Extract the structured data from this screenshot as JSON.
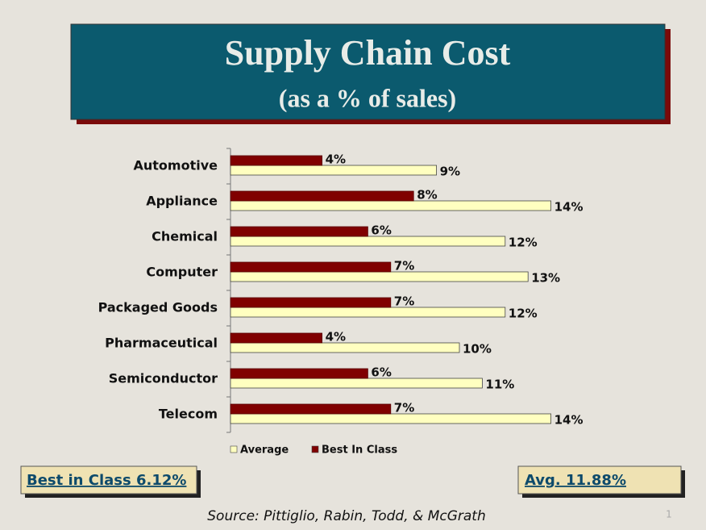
{
  "chart_data": {
    "type": "bar",
    "orientation": "horizontal",
    "title": "Supply Chain Cost",
    "subtitle": "(as a % of sales)",
    "categories": [
      "Automotive",
      "Appliance",
      "Chemical",
      "Computer",
      "Packaged Goods",
      "Pharmaceutical",
      "Semiconductor",
      "Telecom"
    ],
    "series": [
      {
        "name": "Average",
        "color": "#ffffc0",
        "values": [
          9,
          14,
          12,
          13,
          12,
          10,
          11,
          14
        ],
        "value_labels": [
          "9%",
          "14%",
          "12%",
          "13%",
          "12%",
          "10%",
          "11%",
          "14%"
        ]
      },
      {
        "name": "Best In Class",
        "color": "#800000",
        "values": [
          4,
          8,
          6,
          7,
          7,
          4,
          6,
          7
        ],
        "value_labels": [
          "4%",
          "8%",
          "6%",
          "7%",
          "7%",
          "4%",
          "6%",
          "7%"
        ]
      }
    ],
    "legend": "bottom",
    "annotations": [
      "Best in Class 6.12%",
      "Avg. 11.88%"
    ],
    "source": "Source:  Pittiglio, Rabin, Todd,  & McGrath",
    "slide_number": 1
  }
}
